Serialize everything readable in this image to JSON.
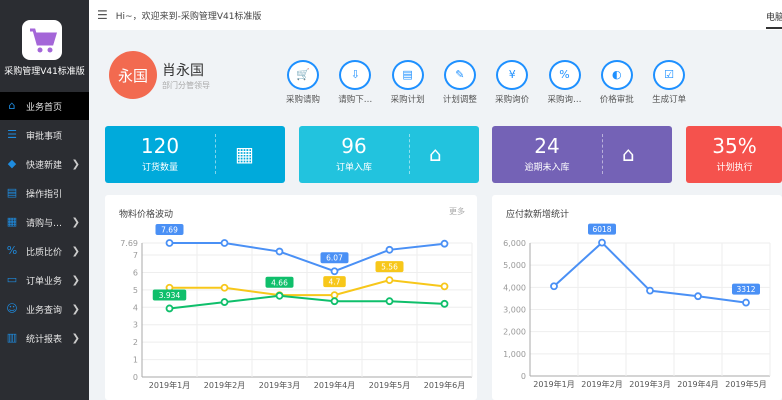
{
  "app": {
    "name": "采购管理V41标准版",
    "welcome": "Hi~，欢迎来到-采购管理V41标准版",
    "right_tab": "电脑"
  },
  "sidebar": {
    "items": [
      {
        "label": "业务首页",
        "icon": "home-icon",
        "active": true
      },
      {
        "label": "审批事项",
        "icon": "list-circle-icon"
      },
      {
        "label": "快速新建",
        "icon": "layers-icon",
        "chevron": true
      },
      {
        "label": "操作指引",
        "icon": "guide-icon"
      },
      {
        "label": "请购与…",
        "icon": "form-icon",
        "chevron": true
      },
      {
        "label": "比质比价",
        "icon": "percent-icon",
        "chevron": true
      },
      {
        "label": "订单业务",
        "icon": "printer-icon",
        "chevron": true
      },
      {
        "label": "业务查询",
        "icon": "user-search-icon",
        "chevron": true
      },
      {
        "label": "统计报表",
        "icon": "chart-icon",
        "chevron": true
      }
    ]
  },
  "user": {
    "avatar_text": "永国",
    "name": "肖永国",
    "role": "部门分管领导"
  },
  "quick_actions": [
    "采购请购",
    "请购下…",
    "采购计划",
    "计划调整",
    "采购询价",
    "采购询…",
    "价格审批",
    "生成订单"
  ],
  "stats": [
    {
      "value": "120",
      "label": "订货数量",
      "color": "#00aadb",
      "icon": "boxes-icon"
    },
    {
      "value": "96",
      "label": "订单入库",
      "color": "#22c3de",
      "icon": "warehouse-icon"
    },
    {
      "value": "24",
      "label": "逾期未入库",
      "color": "#7462b6",
      "icon": "clock-house-icon"
    },
    {
      "value": "35%",
      "label": "计划执行",
      "color": "#f5524d",
      "icon": "plan-icon"
    }
  ],
  "panels": {
    "price": {
      "title": "物料价格波动",
      "more": "更多"
    },
    "payable": {
      "title": "应付款新增统计"
    }
  },
  "chart_data": [
    {
      "type": "line",
      "categories": [
        "2019年1月",
        "2019年2月",
        "2019年3月",
        "2019年4月",
        "2019年5月",
        "2019年6月"
      ],
      "ylim": [
        0,
        7.69
      ],
      "yticks": [
        "0",
        "1",
        "2",
        "3",
        "4",
        "5",
        "6",
        "7",
        "7.69"
      ],
      "grid": true,
      "series": [
        {
          "color": "#4a90f5",
          "values": [
            7.69,
            7.69,
            7.2,
            6.07,
            7.3,
            7.65
          ],
          "labels": {
            "0": "7.69",
            "3": "6.07"
          }
        },
        {
          "color": "#f7c71a",
          "values": [
            5.12,
            5.12,
            4.7,
            4.7,
            5.56,
            5.2
          ],
          "labels": {
            "3": "4.7",
            "4": "5.56"
          }
        },
        {
          "color": "#0fbf6b",
          "values": [
            3.934,
            4.3,
            4.66,
            4.35,
            4.35,
            4.2
          ],
          "labels": {
            "0": "3.934",
            "2": "4.66"
          }
        }
      ]
    },
    {
      "type": "line",
      "categories": [
        "2019年1月",
        "2019年2月",
        "2019年3月",
        "2019年4月",
        "2019年5月"
      ],
      "ylim": [
        0,
        6000
      ],
      "yticks": [
        "0",
        "1,000",
        "2,000",
        "3,000",
        "4,000",
        "5,000",
        "6,000"
      ],
      "grid": true,
      "series": [
        {
          "color": "#4a90f5",
          "values": [
            4050,
            6018,
            3850,
            3600,
            3312
          ],
          "labels": {
            "1": "6018",
            "4": "3312"
          }
        }
      ]
    }
  ]
}
